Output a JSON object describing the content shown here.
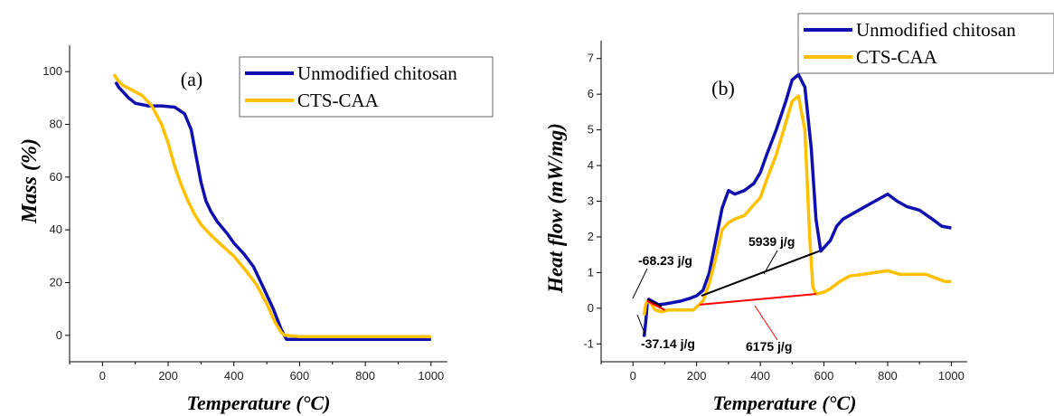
{
  "chart_data": [
    {
      "type": "line",
      "panel_label": "(a)",
      "xlabel": "Temperature (°C)",
      "ylabel": "Mass (%)",
      "xlim": [
        -100,
        1050
      ],
      "ylim": [
        -10,
        110
      ],
      "xticks": [
        0,
        200,
        400,
        600,
        800,
        1000
      ],
      "yticks": [
        0,
        20,
        40,
        60,
        80,
        100
      ],
      "grid": false,
      "legend_position": "top-right",
      "series": [
        {
          "name": "Unmodified chitosan",
          "color": "#1010b0",
          "x": [
            40,
            50,
            80,
            100,
            140,
            180,
            220,
            250,
            270,
            285,
            300,
            315,
            330,
            350,
            380,
            400,
            430,
            460,
            490,
            520,
            545,
            560,
            600,
            700,
            800,
            900,
            1000
          ],
          "y": [
            96,
            94,
            90,
            88,
            87,
            87,
            86.5,
            84,
            78,
            68,
            58,
            51,
            47,
            43,
            38.5,
            35,
            31,
            26,
            18,
            10,
            2,
            -1.5,
            -1.5,
            -1.5,
            -1.5,
            -1.5,
            -1.5
          ]
        },
        {
          "name": "CTS-CAA",
          "color": "#ffc000",
          "x": [
            35,
            45,
            60,
            90,
            120,
            150,
            180,
            200,
            220,
            240,
            260,
            280,
            300,
            330,
            360,
            400,
            440,
            470,
            500,
            525,
            545,
            555,
            600,
            700,
            800,
            900,
            1000
          ],
          "y": [
            99,
            97,
            95,
            93,
            91,
            87,
            80,
            73,
            64,
            57,
            51,
            46,
            42,
            38,
            34.5,
            30,
            24,
            19,
            12,
            5,
            1,
            0,
            -0.5,
            -0.5,
            -0.5,
            -0.5,
            -0.5
          ]
        }
      ]
    },
    {
      "type": "line",
      "panel_label": "(b)",
      "xlabel": "Temperature (°C)",
      "ylabel": "Heat flow (mW/mg)",
      "xlim": [
        -100,
        1050
      ],
      "ylim": [
        -1.5,
        7.5
      ],
      "xticks": [
        0,
        200,
        400,
        600,
        800,
        1000
      ],
      "yticks": [
        -1,
        0,
        1,
        2,
        3,
        4,
        5,
        6,
        7
      ],
      "grid": false,
      "legend_position": "top-right",
      "series": [
        {
          "name": "Unmodified chitosan",
          "color": "#1010b0",
          "x": [
            35,
            40,
            45,
            50,
            60,
            80,
            100,
            120,
            150,
            180,
            200,
            220,
            240,
            260,
            280,
            300,
            320,
            350,
            380,
            400,
            420,
            450,
            480,
            500,
            520,
            540,
            560,
            575,
            590,
            600,
            620,
            640,
            660,
            700,
            740,
            770,
            800,
            830,
            860,
            900,
            940,
            970,
            1000
          ],
          "y": [
            -0.8,
            -0.4,
            0.15,
            0.25,
            0.2,
            0.1,
            0.12,
            0.15,
            0.2,
            0.28,
            0.35,
            0.5,
            1.0,
            1.9,
            2.8,
            3.3,
            3.2,
            3.3,
            3.5,
            3.8,
            4.3,
            5.0,
            5.8,
            6.4,
            6.55,
            6.2,
            4.5,
            2.5,
            1.6,
            1.7,
            1.9,
            2.3,
            2.5,
            2.7,
            2.9,
            3.05,
            3.2,
            3.0,
            2.85,
            2.75,
            2.5,
            2.3,
            2.25
          ]
        },
        {
          "name": "CTS-CAA",
          "color": "#ffc000",
          "x": [
            35,
            40,
            45,
            55,
            70,
            90,
            110,
            150,
            190,
            220,
            240,
            260,
            280,
            300,
            320,
            350,
            380,
            400,
            420,
            450,
            480,
            500,
            520,
            540,
            555,
            565,
            575,
            600,
            620,
            650,
            680,
            720,
            760,
            800,
            840,
            880,
            920,
            950,
            980,
            1000
          ],
          "y": [
            -0.2,
            0.1,
            0.2,
            0.15,
            -0.05,
            -0.1,
            -0.05,
            -0.05,
            -0.05,
            0.2,
            0.7,
            1.4,
            2.2,
            2.4,
            2.5,
            2.6,
            2.9,
            3.1,
            3.6,
            4.3,
            5.2,
            5.8,
            5.95,
            5.0,
            2.0,
            0.6,
            0.4,
            0.45,
            0.55,
            0.75,
            0.9,
            0.95,
            1.0,
            1.05,
            0.95,
            0.95,
            0.95,
            0.85,
            0.75,
            0.75
          ]
        }
      ],
      "baselines": [
        {
          "color": "#000000",
          "x": [
            215,
            585
          ],
          "y": [
            0.35,
            1.6
          ]
        },
        {
          "color": "#ff0000",
          "x": [
            210,
            575
          ],
          "y": [
            0.1,
            0.4
          ]
        },
        {
          "color": "#000000",
          "x": [
            45,
            90
          ],
          "y": [
            0.25,
            0.05
          ]
        },
        {
          "color": "#ff0000",
          "x": [
            45,
            100
          ],
          "y": [
            0.2,
            -0.05
          ]
        }
      ],
      "annotations": [
        {
          "text": "-68.23 j/g"
        },
        {
          "text": "5939 j/g"
        },
        {
          "text": "-37.14 j/g"
        },
        {
          "text": "6175 j/g"
        }
      ]
    }
  ]
}
